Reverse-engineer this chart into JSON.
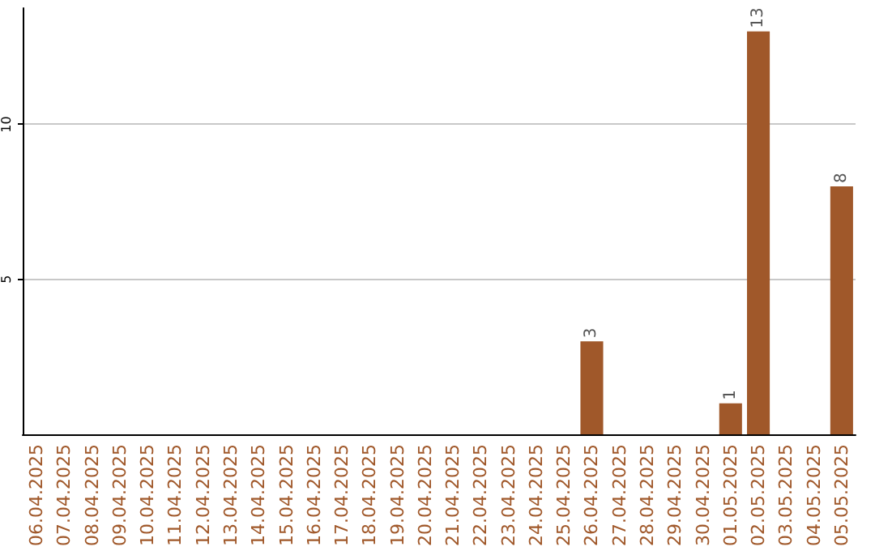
{
  "chart_data": {
    "type": "bar",
    "categories": [
      "06.04.2025",
      "07.04.2025",
      "08.04.2025",
      "09.04.2025",
      "10.04.2025",
      "11.04.2025",
      "12.04.2025",
      "13.04.2025",
      "14.04.2025",
      "15.04.2025",
      "16.04.2025",
      "17.04.2025",
      "18.04.2025",
      "19.04.2025",
      "20.04.2025",
      "21.04.2025",
      "22.04.2025",
      "23.04.2025",
      "24.04.2025",
      "25.04.2025",
      "26.04.2025",
      "27.04.2025",
      "28.04.2025",
      "29.04.2025",
      "30.04.2025",
      "01.05.2025",
      "02.05.2025",
      "03.05.2025",
      "04.05.2025",
      "05.05.2025"
    ],
    "values": [
      0,
      0,
      0,
      0,
      0,
      0,
      0,
      0,
      0,
      0,
      0,
      0,
      0,
      0,
      0,
      0,
      0,
      0,
      0,
      0,
      3,
      0,
      0,
      0,
      0,
      1,
      13,
      0,
      0,
      8
    ],
    "value_labels": [
      null,
      null,
      null,
      null,
      null,
      null,
      null,
      null,
      null,
      null,
      null,
      null,
      null,
      null,
      null,
      null,
      null,
      null,
      null,
      null,
      "3",
      null,
      null,
      null,
      null,
      "1",
      "13",
      null,
      null,
      "8"
    ],
    "color": "#a0582a",
    "ylim": [
      0,
      13.75
    ],
    "yticks": [
      5,
      10
    ],
    "grid": "y"
  }
}
